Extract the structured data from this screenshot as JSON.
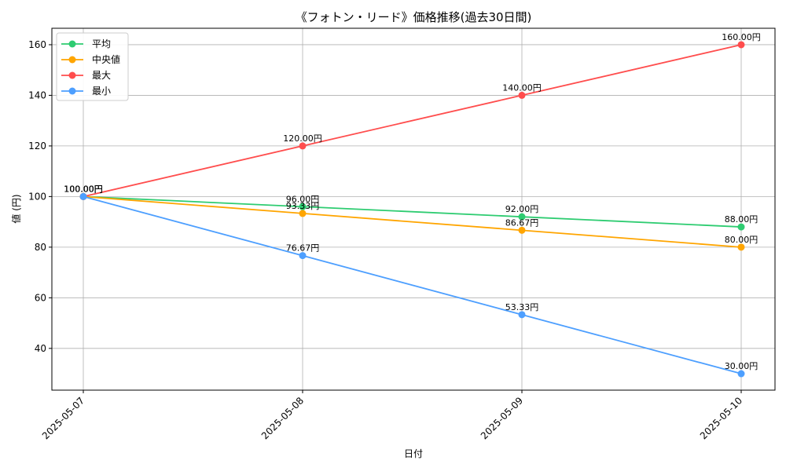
{
  "chart_data": {
    "type": "line",
    "title": "《フォトン・リード》価格推移(過去30日間)",
    "xlabel": "日付",
    "ylabel": "値 (円)",
    "x": [
      "2025-05-07",
      "2025-05-08",
      "2025-05-09",
      "2025-05-10"
    ],
    "ylim": [
      23.5,
      166.5
    ],
    "yticks": [
      40,
      60,
      80,
      100,
      120,
      140,
      160
    ],
    "grid": true,
    "legend_position": "top-left",
    "label_suffix": "円",
    "series": [
      {
        "name": "平均",
        "color": "#2ecc71",
        "values": [
          100.0,
          96.0,
          92.0,
          88.0
        ]
      },
      {
        "name": "中央値",
        "color": "#ffa500",
        "values": [
          100.0,
          93.33,
          86.67,
          80.0
        ]
      },
      {
        "name": "最大",
        "color": "#ff4d4d",
        "values": [
          100.0,
          120.0,
          140.0,
          160.0
        ]
      },
      {
        "name": "最小",
        "color": "#4d9fff",
        "values": [
          100.0,
          76.67,
          53.33,
          30.0
        ]
      }
    ]
  }
}
